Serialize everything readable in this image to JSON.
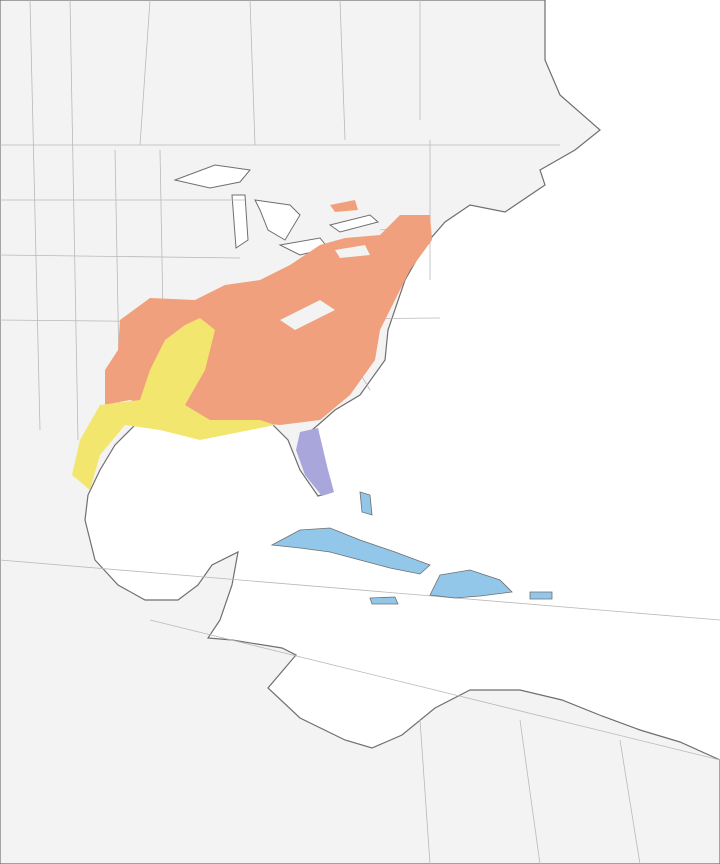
{
  "map": {
    "colors": {
      "ocean": "#ffffff",
      "land": "#f3f3f3",
      "coastline": "#6f6f6f",
      "borders": "#b9b9b9",
      "range_orange": "#f0a07c",
      "range_yellow": "#f3e66f",
      "range_purple": "#a9a6dc",
      "range_blue": "#93c7ea"
    }
  }
}
